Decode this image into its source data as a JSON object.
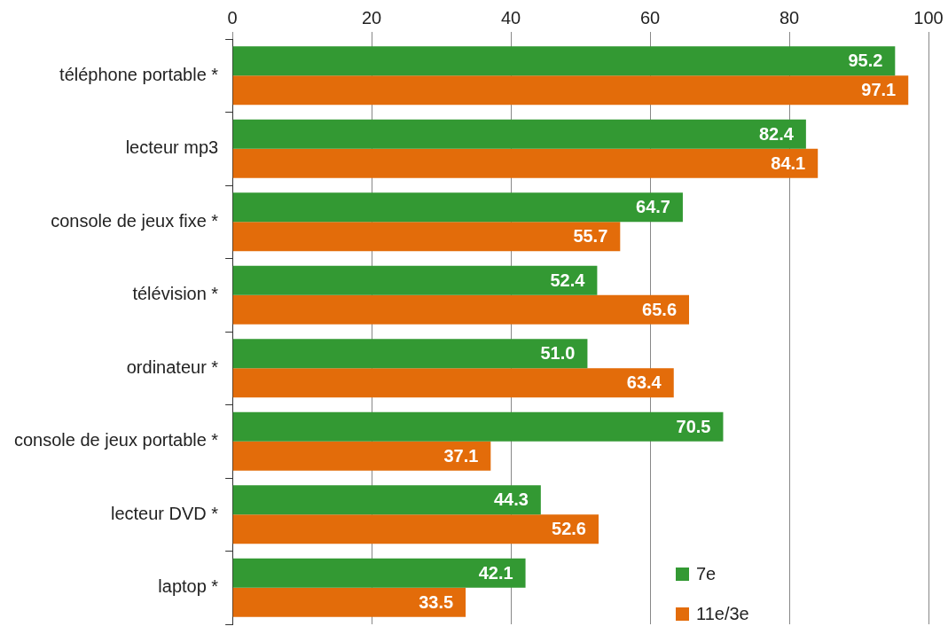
{
  "chart_data": {
    "type": "bar",
    "orientation": "horizontal",
    "categories": [
      "téléphone portable *",
      "lecteur mp3",
      "console de jeux fixe *",
      "télévision *",
      "ordinateur *",
      "console de jeux portable *",
      "lecteur DVD *",
      "laptop *"
    ],
    "series": [
      {
        "name": "7e",
        "color": "#339933",
        "values": [
          95.2,
          82.4,
          64.7,
          52.4,
          51.0,
          70.5,
          44.3,
          42.1
        ],
        "value_labels": [
          "95.2",
          "82.4",
          "64.7",
          "52.4",
          "51.0",
          "70.5",
          "44.3",
          "42.1"
        ]
      },
      {
        "name": "11e/3e",
        "color": "#e36c0a",
        "values": [
          97.1,
          84.1,
          55.7,
          65.6,
          63.4,
          37.1,
          52.6,
          33.5
        ],
        "value_labels": [
          "97.1",
          "84.1",
          "55.7",
          "65.6",
          "63.4",
          "37.1",
          "52.6",
          "33.5"
        ]
      }
    ],
    "xlim": [
      0,
      100
    ],
    "xticks": [
      0,
      20,
      40,
      60,
      80,
      100
    ],
    "grid": "x",
    "legend": "bottom right"
  }
}
